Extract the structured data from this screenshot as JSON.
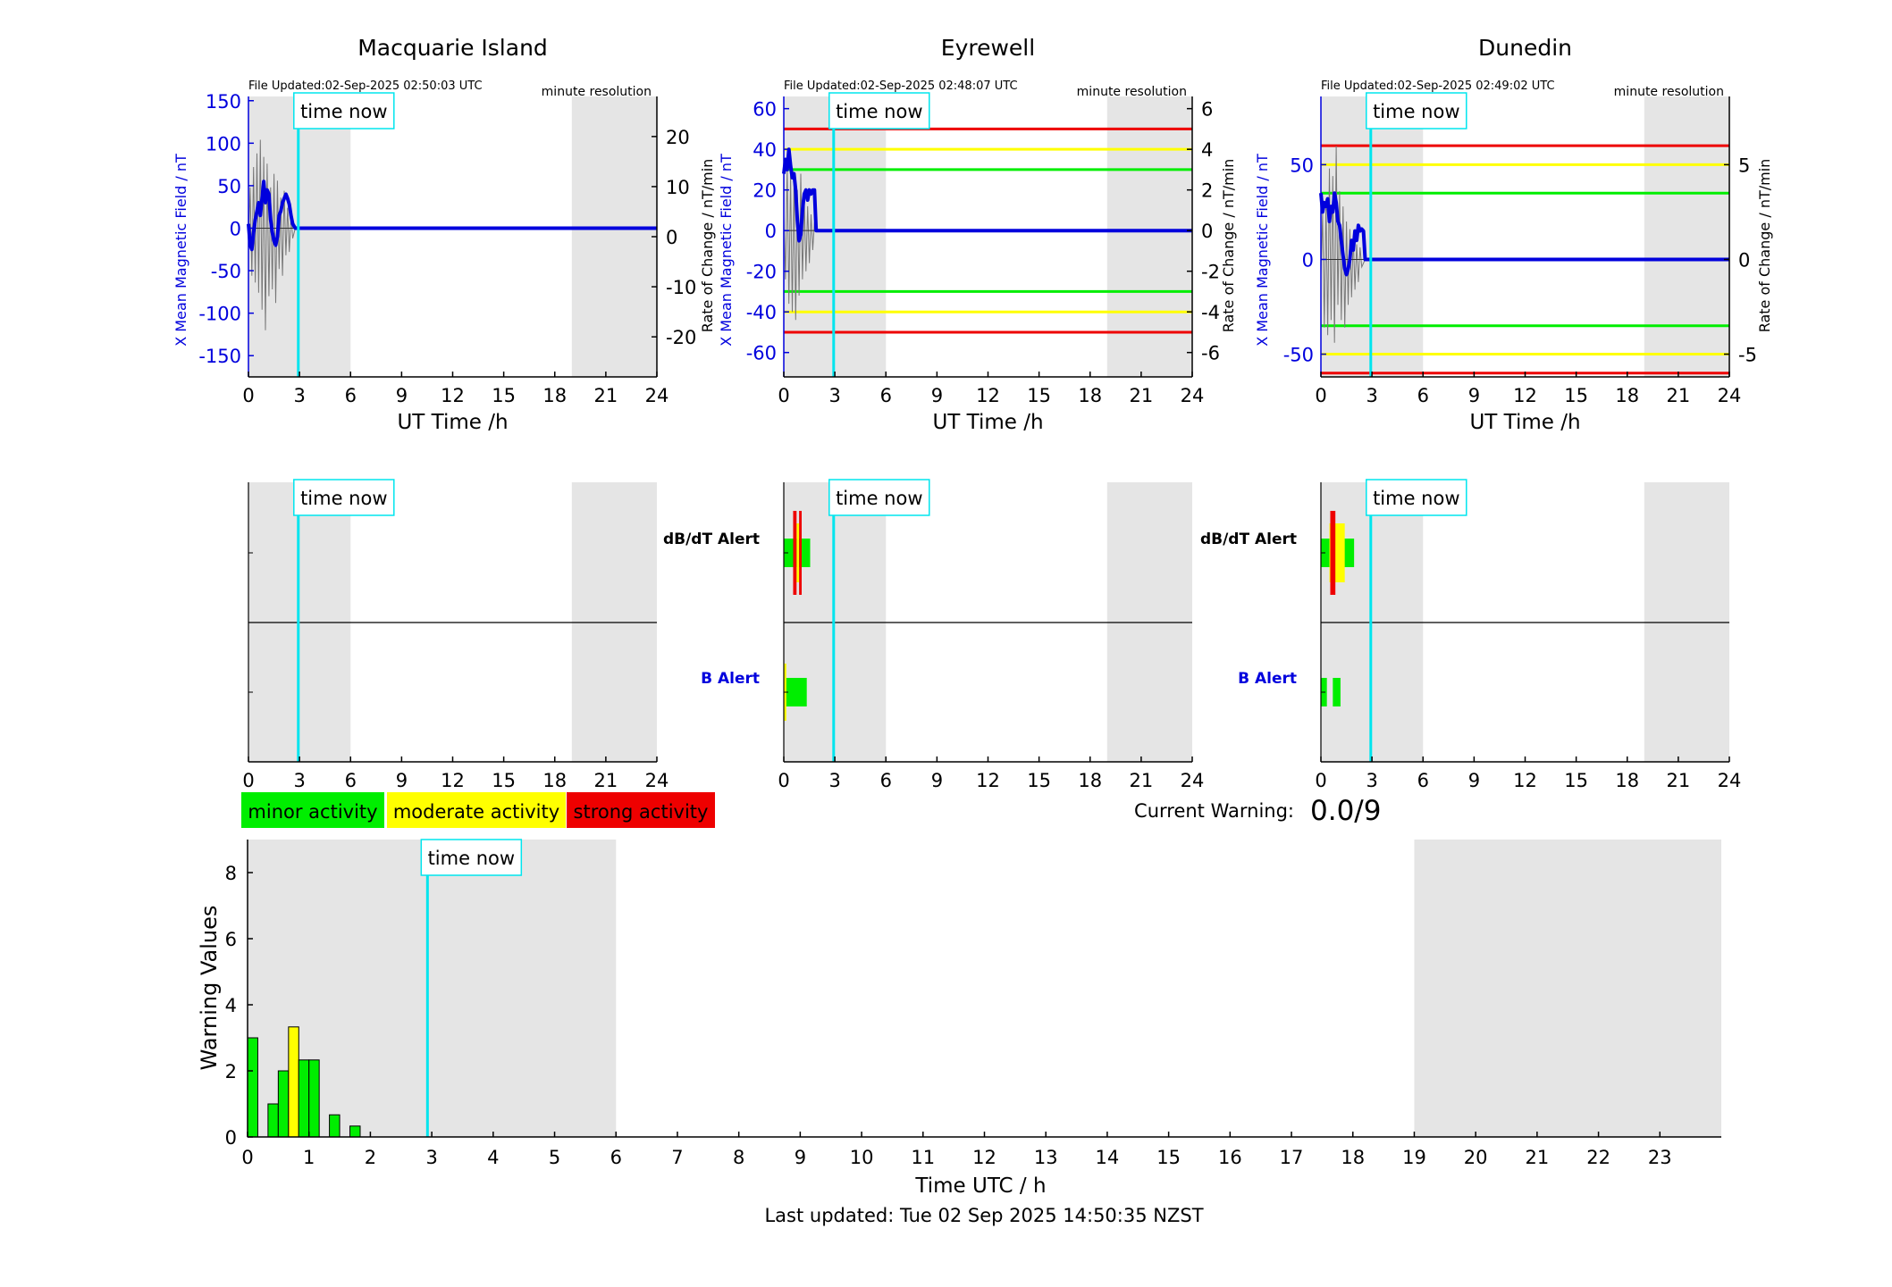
{
  "colors": {
    "green": "#00ee00",
    "yellow": "#ffff00",
    "red": "#ee0000",
    "blue": "#0000dd",
    "cyan": "#00e5ee",
    "shade": "#e5e5e5"
  },
  "common": {
    "time_now_label": "time now",
    "minute_resolution": "minute resolution",
    "time_now_hour": 2.93,
    "shade_ranges_h": [
      [
        0,
        6
      ],
      [
        19,
        24
      ]
    ]
  },
  "stations": [
    {
      "name": "Macquarie Island",
      "file_updated": "File Updated:02-Sep-2025 02:50:03 UTC",
      "left_axis_label": "X Mean Magnetic Field / nT",
      "right_axis_label": "Rate of Change / nT/min",
      "xlabel": "UT Time /h",
      "left_ylim": [
        -175,
        155
      ],
      "right_ylim": [
        -28,
        28
      ],
      "left_ticks": [
        -150,
        -100,
        -50,
        0,
        50,
        100,
        150
      ],
      "right_ticks": [
        -20,
        -10,
        0,
        10,
        20
      ],
      "thresholds": [],
      "bx_mean": [
        [
          0,
          5
        ],
        [
          0.1,
          -20
        ],
        [
          0.2,
          -25
        ],
        [
          0.3,
          -5
        ],
        [
          0.4,
          10
        ],
        [
          0.5,
          20
        ],
        [
          0.6,
          30
        ],
        [
          0.7,
          15
        ],
        [
          0.8,
          35
        ],
        [
          0.9,
          55
        ],
        [
          1.0,
          30
        ],
        [
          1.1,
          45
        ],
        [
          1.2,
          40
        ],
        [
          1.3,
          10
        ],
        [
          1.4,
          -5
        ],
        [
          1.5,
          -15
        ],
        [
          1.6,
          -20
        ],
        [
          1.7,
          -10
        ],
        [
          1.8,
          15
        ],
        [
          1.9,
          20
        ],
        [
          2.0,
          30
        ],
        [
          2.1,
          35
        ],
        [
          2.2,
          40
        ],
        [
          2.3,
          35
        ],
        [
          2.4,
          28
        ],
        [
          2.5,
          15
        ],
        [
          2.6,
          5
        ],
        [
          2.75,
          0
        ]
      ],
      "db_dt": [
        [
          0,
          -30
        ],
        [
          0.1,
          60
        ],
        [
          0.2,
          -70
        ],
        [
          0.3,
          90
        ],
        [
          0.4,
          -80
        ],
        [
          0.5,
          110
        ],
        [
          0.6,
          -95
        ],
        [
          0.7,
          130
        ],
        [
          0.8,
          -120
        ],
        [
          0.9,
          105
        ],
        [
          1.0,
          -150
        ],
        [
          1.1,
          95
        ],
        [
          1.2,
          -100
        ],
        [
          1.3,
          60
        ],
        [
          1.4,
          -90
        ],
        [
          1.5,
          80
        ],
        [
          1.6,
          -110
        ],
        [
          1.7,
          70
        ],
        [
          1.8,
          -60
        ],
        [
          1.9,
          45
        ],
        [
          2.0,
          -70
        ],
        [
          2.1,
          55
        ],
        [
          2.2,
          -40
        ],
        [
          2.3,
          30
        ],
        [
          2.4,
          -35
        ],
        [
          2.5,
          20
        ],
        [
          2.6,
          -15
        ],
        [
          2.75,
          0
        ]
      ],
      "alerts_dbdt": [],
      "alerts_b": []
    },
    {
      "name": "Eyrewell",
      "file_updated": "File Updated:02-Sep-2025 02:48:07 UTC",
      "left_axis_label": "X Mean Magnetic Field / nT",
      "right_axis_label": "Rate of Change / nT/min",
      "xlabel": "UT Time /h",
      "left_ylim": [
        -72,
        66
      ],
      "right_ylim": [
        -7.2,
        6.6
      ],
      "left_ticks": [
        -60,
        -40,
        -20,
        0,
        20,
        40,
        60
      ],
      "right_ticks": [
        -6,
        -4,
        -2,
        0,
        2,
        4,
        6
      ],
      "thresholds": [
        {
          "value": 50,
          "color": "red"
        },
        {
          "value": 40,
          "color": "yellow"
        },
        {
          "value": 30,
          "color": "green"
        },
        {
          "value": -30,
          "color": "green"
        },
        {
          "value": -40,
          "color": "yellow"
        },
        {
          "value": -50,
          "color": "red"
        }
      ],
      "bx_mean": [
        [
          0,
          28
        ],
        [
          0.1,
          35
        ],
        [
          0.2,
          30
        ],
        [
          0.3,
          40
        ],
        [
          0.4,
          32
        ],
        [
          0.5,
          26
        ],
        [
          0.6,
          28
        ],
        [
          0.7,
          20
        ],
        [
          0.8,
          5
        ],
        [
          0.9,
          -5
        ],
        [
          1.0,
          -2
        ],
        [
          1.1,
          10
        ],
        [
          1.2,
          18
        ],
        [
          1.3,
          20
        ],
        [
          1.4,
          15
        ],
        [
          1.5,
          20
        ],
        [
          1.6,
          18
        ],
        [
          1.7,
          20
        ],
        [
          1.8,
          20
        ],
        [
          1.9,
          0
        ]
      ],
      "db_dt": [
        [
          0,
          10
        ],
        [
          0.1,
          -30
        ],
        [
          0.2,
          40
        ],
        [
          0.3,
          -45
        ],
        [
          0.4,
          35
        ],
        [
          0.5,
          -50
        ],
        [
          0.6,
          30
        ],
        [
          0.7,
          -55
        ],
        [
          0.8,
          25
        ],
        [
          0.9,
          -40
        ],
        [
          1.0,
          35
        ],
        [
          1.1,
          -30
        ],
        [
          1.2,
          20
        ],
        [
          1.3,
          -25
        ],
        [
          1.4,
          15
        ],
        [
          1.5,
          -20
        ],
        [
          1.6,
          10
        ],
        [
          1.7,
          -12
        ],
        [
          1.8,
          5
        ],
        [
          1.9,
          0
        ]
      ],
      "alerts_dbdt": [
        {
          "start": 0.55,
          "end": 0.75,
          "level": "red"
        },
        {
          "start": 0.75,
          "end": 0.9,
          "level": "yellow"
        },
        {
          "start": 0.9,
          "end": 1.05,
          "level": "red"
        },
        {
          "start": 0.0,
          "end": 1.55,
          "level": "green"
        }
      ],
      "alerts_b": [
        {
          "start": 0.0,
          "end": 0.15,
          "level": "yellow"
        },
        {
          "start": 0.0,
          "end": 1.35,
          "level": "green"
        }
      ]
    },
    {
      "name": "Dunedin",
      "file_updated": "File Updated:02-Sep-2025 02:49:02 UTC",
      "left_axis_label": "X Mean Magnetic Field / nT",
      "right_axis_label": "Rate of Change / nT/min",
      "xlabel": "UT Time /h",
      "left_ylim": [
        -62,
        86
      ],
      "right_ylim": [
        -6.2,
        8.6
      ],
      "left_ticks": [
        -50,
        0,
        50
      ],
      "right_ticks": [
        -5,
        0,
        5
      ],
      "thresholds": [
        {
          "value": 60,
          "color": "red"
        },
        {
          "value": 50,
          "color": "yellow"
        },
        {
          "value": 35,
          "color": "green"
        },
        {
          "value": -35,
          "color": "green"
        },
        {
          "value": -50,
          "color": "yellow"
        },
        {
          "value": -60,
          "color": "red"
        }
      ],
      "bx_mean": [
        [
          0,
          35
        ],
        [
          0.1,
          25
        ],
        [
          0.2,
          30
        ],
        [
          0.3,
          28
        ],
        [
          0.4,
          32
        ],
        [
          0.5,
          20
        ],
        [
          0.6,
          28
        ],
        [
          0.7,
          25
        ],
        [
          0.8,
          35
        ],
        [
          0.9,
          30
        ],
        [
          1.0,
          20
        ],
        [
          1.1,
          18
        ],
        [
          1.2,
          10
        ],
        [
          1.3,
          2
        ],
        [
          1.4,
          -5
        ],
        [
          1.5,
          -8
        ],
        [
          1.6,
          -5
        ],
        [
          1.7,
          0
        ],
        [
          1.8,
          10
        ],
        [
          1.9,
          5
        ],
        [
          2.0,
          15
        ],
        [
          2.1,
          10
        ],
        [
          2.2,
          18
        ],
        [
          2.3,
          15
        ],
        [
          2.4,
          16
        ],
        [
          2.5,
          15
        ],
        [
          2.6,
          0
        ]
      ],
      "db_dt": [
        [
          0,
          -10
        ],
        [
          0.1,
          30
        ],
        [
          0.2,
          -45
        ],
        [
          0.3,
          40
        ],
        [
          0.4,
          -50
        ],
        [
          0.5,
          60
        ],
        [
          0.6,
          -40
        ],
        [
          0.7,
          55
        ],
        [
          0.8,
          -55
        ],
        [
          0.9,
          75
        ],
        [
          1.0,
          -30
        ],
        [
          1.1,
          45
        ],
        [
          1.2,
          -40
        ],
        [
          1.3,
          35
        ],
        [
          1.4,
          -45
        ],
        [
          1.5,
          25
        ],
        [
          1.6,
          -30
        ],
        [
          1.7,
          20
        ],
        [
          1.8,
          -25
        ],
        [
          1.9,
          15
        ],
        [
          2.0,
          -20
        ],
        [
          2.1,
          10
        ],
        [
          2.2,
          -15
        ],
        [
          2.3,
          8
        ],
        [
          2.4,
          -5
        ],
        [
          2.6,
          0
        ]
      ],
      "alerts_dbdt": [
        {
          "start": 0.55,
          "end": 0.85,
          "level": "red"
        },
        {
          "start": 0.5,
          "end": 1.4,
          "level": "yellow"
        },
        {
          "start": 0.0,
          "end": 1.95,
          "level": "green"
        }
      ],
      "alerts_b": [
        {
          "start": 0.0,
          "end": 0.35,
          "level": "green"
        },
        {
          "start": 0.7,
          "end": 1.15,
          "level": "green"
        }
      ]
    }
  ],
  "alert_labels": {
    "dbdt": "dB/dT Alert",
    "b": "B Alert"
  },
  "legend": [
    {
      "label": "minor activity",
      "color": "green"
    },
    {
      "label": "moderate activity",
      "color": "yellow"
    },
    {
      "label": "strong activity",
      "color": "red"
    }
  ],
  "current_warning": {
    "label": "Current Warning:",
    "value": "0.0/9"
  },
  "chart_data": {
    "type": "bar",
    "ylabel": "Warning Values",
    "xlabel": "Time UTC / h",
    "ylim": [
      0,
      9
    ],
    "xlim": [
      0,
      24
    ],
    "yticks": [
      0,
      2,
      4,
      6,
      8
    ],
    "xticks": [
      0,
      1,
      2,
      3,
      4,
      5,
      6,
      7,
      8,
      9,
      10,
      11,
      12,
      13,
      14,
      15,
      16,
      17,
      18,
      19,
      20,
      21,
      22,
      23
    ],
    "bar_width_h": 0.1667,
    "bars": [
      {
        "start": 0.0,
        "value": 3.0,
        "level": "green"
      },
      {
        "start": 0.333,
        "value": 1.0,
        "level": "green"
      },
      {
        "start": 0.5,
        "value": 2.0,
        "level": "green"
      },
      {
        "start": 0.667,
        "value": 3.33,
        "level": "yellow"
      },
      {
        "start": 0.833,
        "value": 2.33,
        "level": "green"
      },
      {
        "start": 1.0,
        "value": 2.33,
        "level": "green"
      },
      {
        "start": 1.333,
        "value": 0.67,
        "level": "green"
      },
      {
        "start": 1.667,
        "value": 0.33,
        "level": "green"
      }
    ]
  },
  "footer": {
    "last_updated": "Last updated: Tue 02 Sep 2025 14:50:35 NZST"
  }
}
